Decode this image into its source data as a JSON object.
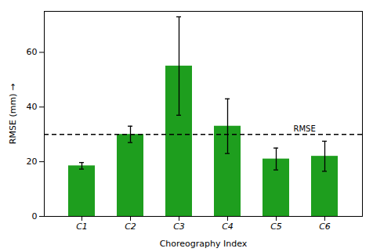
{
  "chart_data": {
    "type": "bar",
    "categories": [
      "C1",
      "C2",
      "C3",
      "C4",
      "C5",
      "C6"
    ],
    "values": [
      18.5,
      30.0,
      55.0,
      33.0,
      21.0,
      22.0
    ],
    "errors": [
      1.2,
      3.0,
      18.0,
      10.0,
      4.0,
      5.5
    ],
    "color": "#1e9e1e",
    "xlabel": "Choreography Index",
    "ylabel": "RMSE (mm)",
    "ylim": [
      0,
      75
    ],
    "yticks": [
      0,
      20,
      40,
      60
    ],
    "grid": false,
    "annotations": [
      {
        "text": "RMSE",
        "y": 30.0,
        "line_style": "dashed"
      }
    ]
  }
}
